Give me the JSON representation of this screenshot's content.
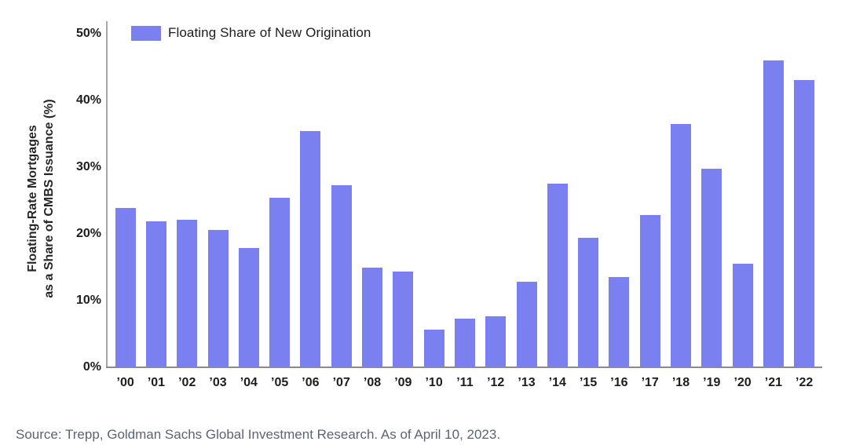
{
  "chart_data": {
    "type": "bar",
    "title": "",
    "legend": [
      "Floating Share of New Origination"
    ],
    "categories": [
      "’00",
      "’01",
      "’02",
      "’03",
      "’04",
      "’05",
      "’06",
      "’07",
      "’08",
      "’09",
      "’10",
      "’11",
      "’12",
      "’13",
      "’14",
      "’15",
      "’16",
      "’17",
      "’18",
      "’19",
      "’20",
      "’21",
      "’22"
    ],
    "values": [
      23.8,
      21.8,
      22.0,
      20.5,
      17.8,
      25.3,
      35.4,
      27.2,
      14.9,
      14.3,
      5.6,
      7.2,
      7.5,
      12.7,
      27.5,
      19.4,
      13.4,
      22.8,
      36.4,
      29.7,
      15.5,
      46.0,
      43.0
    ],
    "xlabel": "",
    "ylabel": "Floating-Rate Mortgages as a Share of CMBS Issuance (%)",
    "ylabel_lines": [
      "Floating-Rate Mortgages",
      "as a Share of CMBS Issuance (%)"
    ],
    "ylim": [
      0,
      50
    ],
    "yticks": [
      "0%",
      "10%",
      "20%",
      "30%",
      "40%",
      "50%"
    ],
    "grid": false,
    "legend_position": "top-left",
    "bar_color": "#7b80f0"
  },
  "legend": {
    "item_label": "Floating Share of New Origination"
  },
  "source_note": "Source: Trepp, Goldman Sachs Global Investment Research. As of April 10, 2023.",
  "colors": {
    "bar": "#7b80f0",
    "axis_line": "#a6a6a6",
    "baseline": "#8b8b8b",
    "tick_text": "#1d1d1d",
    "source_text": "#5a6472"
  }
}
